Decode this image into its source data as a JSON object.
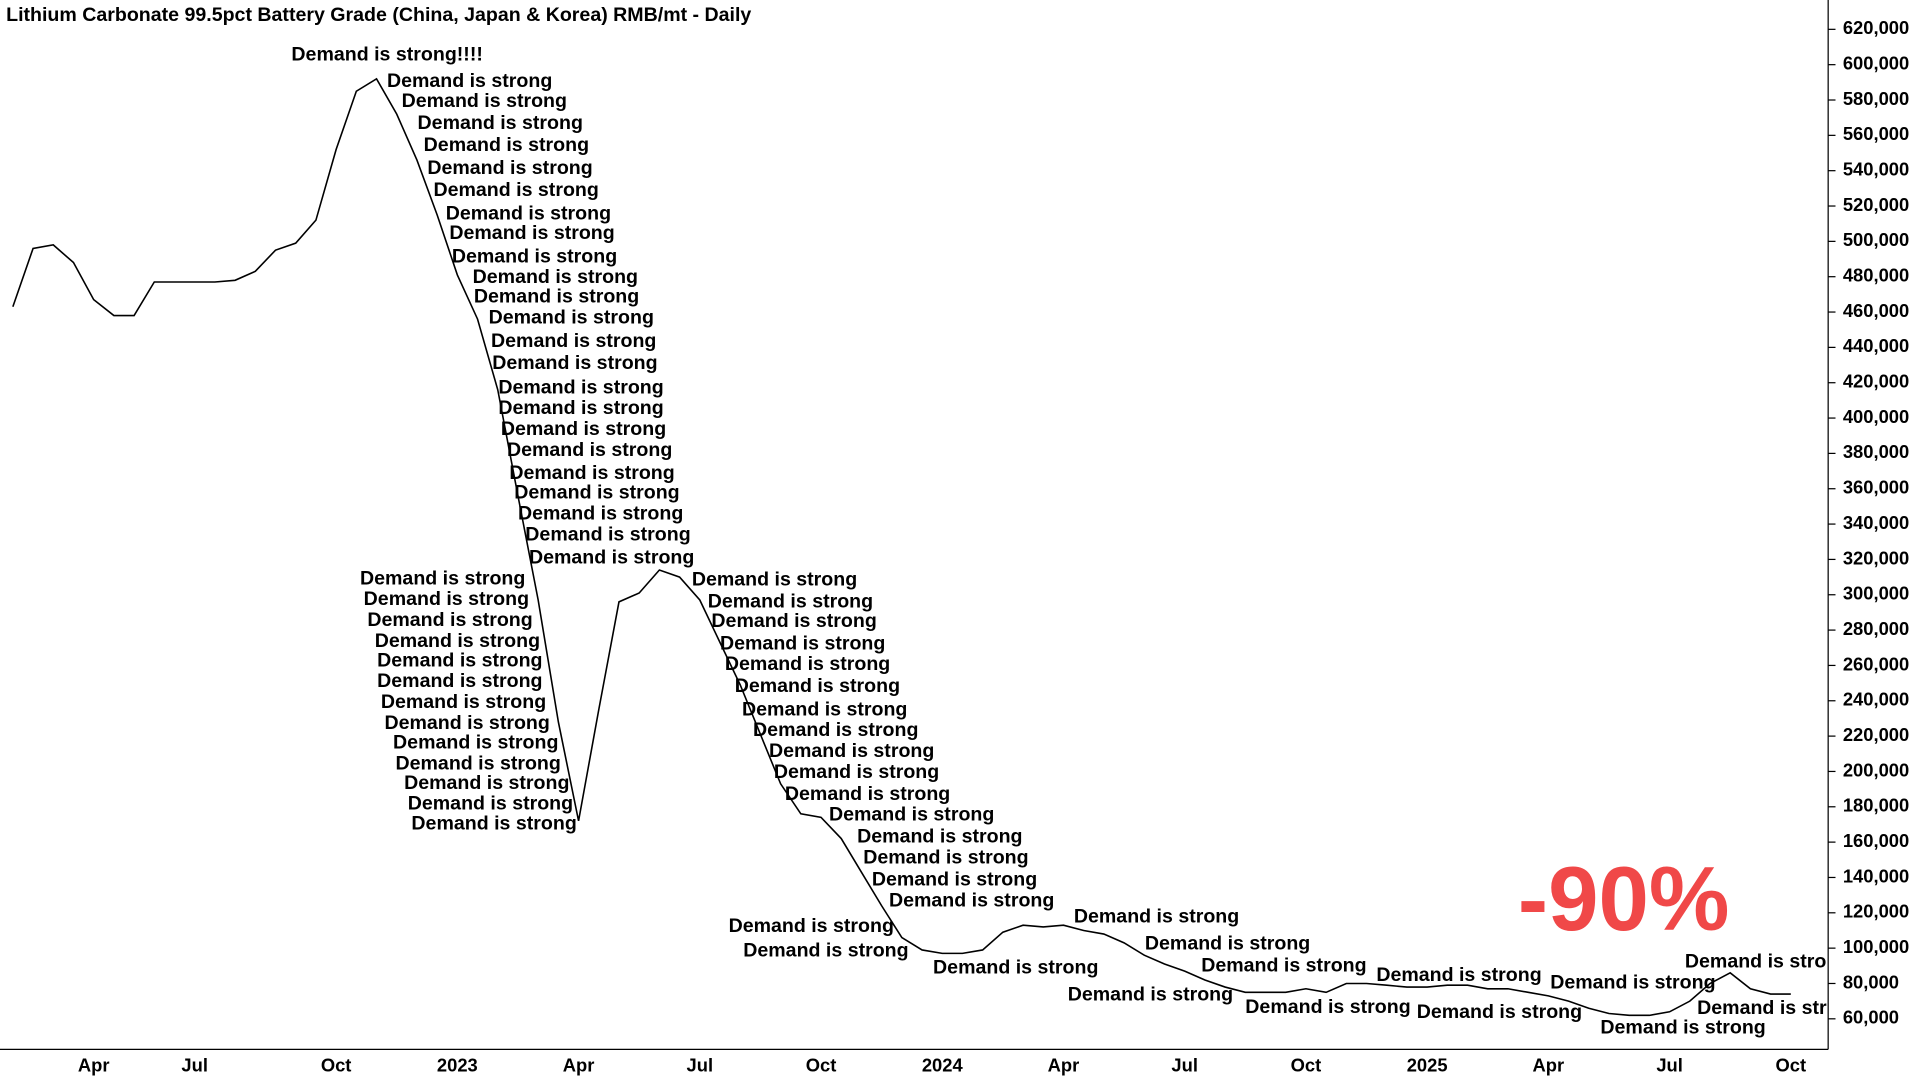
{
  "chart_data": {
    "type": "line",
    "title": "Lithium Carbonate 99.5pct Battery Grade (China, Japan & Korea) RMB/mt - Daily",
    "categories": [
      null,
      null,
      null,
      null,
      "Apr",
      null,
      null,
      null,
      null,
      "Jul",
      null,
      null,
      null,
      null,
      null,
      null,
      "Oct",
      null,
      null,
      null,
      null,
      null,
      "2023",
      null,
      null,
      null,
      null,
      null,
      "Apr",
      null,
      null,
      null,
      null,
      null,
      "Jul",
      null,
      null,
      null,
      null,
      null,
      "Oct",
      null,
      null,
      null,
      null,
      null,
      "2024",
      null,
      null,
      null,
      null,
      null,
      "Apr",
      null,
      null,
      null,
      null,
      null,
      "Jul",
      null,
      null,
      null,
      null,
      null,
      "Oct",
      null,
      null,
      null,
      null,
      null,
      "2025",
      null,
      null,
      null,
      null,
      null,
      "Apr",
      null,
      null,
      null,
      null,
      null,
      "Jul",
      null,
      null,
      null,
      null,
      null,
      "Oct"
    ],
    "values": [
      463000,
      496000,
      498000,
      488000,
      467000,
      458000,
      458000,
      477000,
      477000,
      477000,
      477000,
      478000,
      483000,
      495000,
      499000,
      512000,
      552000,
      585000,
      592000,
      572000,
      546000,
      515000,
      481000,
      456000,
      416000,
      356000,
      297000,
      228000,
      172000,
      235000,
      296000,
      301000,
      314000,
      310000,
      297000,
      273000,
      249000,
      221000,
      193000,
      176000,
      174000,
      162000,
      143000,
      124000,
      106000,
      99000,
      97000,
      97000,
      99000,
      109000,
      113000,
      112000,
      113000,
      110000,
      108000,
      103000,
      96000,
      91000,
      87000,
      82000,
      78000,
      75000,
      75000,
      75000,
      77000,
      75000,
      80000,
      80000,
      79000,
      78000,
      78000,
      79000,
      79000,
      77000,
      77000,
      75000,
      73000,
      70000,
      66000,
      63000,
      62000,
      62000,
      64000,
      70000,
      80000,
      86000,
      77000,
      74000,
      74000
    ],
    "color": "#000000",
    "ylim": [
      42700,
      636600
    ],
    "yticks": [
      {
        "value": 60000,
        "label": "60,000"
      },
      {
        "value": 80000,
        "label": "80,000"
      },
      {
        "value": 100000,
        "label": "100,000"
      },
      {
        "value": 120000,
        "label": "120,000"
      },
      {
        "value": 140000,
        "label": "140,000"
      },
      {
        "value": 160000,
        "label": "160,000"
      },
      {
        "value": 180000,
        "label": "180,000"
      },
      {
        "value": 200000,
        "label": "200,000"
      },
      {
        "value": 220000,
        "label": "220,000"
      },
      {
        "value": 240000,
        "label": "240,000"
      },
      {
        "value": 260000,
        "label": "260,000"
      },
      {
        "value": 280000,
        "label": "280,000"
      },
      {
        "value": 300000,
        "label": "300,000"
      },
      {
        "value": 320000,
        "label": "320,000"
      },
      {
        "value": 340000,
        "label": "340,000"
      },
      {
        "value": 360000,
        "label": "360,000"
      },
      {
        "value": 380000,
        "label": "380,000"
      },
      {
        "value": 400000,
        "label": "400,000"
      },
      {
        "value": 420000,
        "label": "420,000"
      },
      {
        "value": 440000,
        "label": "440,000"
      },
      {
        "value": 460000,
        "label": "460,000"
      },
      {
        "value": 480000,
        "label": "480,000"
      },
      {
        "value": 500000,
        "label": "500,000"
      },
      {
        "value": 520000,
        "label": "520,000"
      },
      {
        "value": 540000,
        "label": "540,000"
      },
      {
        "value": 560000,
        "label": "560,000"
      },
      {
        "value": 580000,
        "label": "580,000"
      },
      {
        "value": 600000,
        "label": "600,000"
      },
      {
        "value": 620000,
        "label": "620,000"
      }
    ],
    "grid": false,
    "highlight": "-90%",
    "highlight_color": "#f04848",
    "annotations": [
      "Demand is strong!!!!",
      "Demand is strong",
      "Demand is strong",
      "Demand is strong",
      "Demand is strong",
      "Demand is strong",
      "Demand is strong",
      "Demand is strong",
      "Demand is strong",
      "Demand is strong",
      "Demand is strong",
      "Demand is strong",
      "Demand is strong",
      "Demand is strong",
      "Demand is strong",
      "Demand is strong",
      "Demand is strong",
      "Demand is strong",
      "Demand is strong",
      "Demand is strong",
      "Demand is strong",
      "Demand is strong",
      "Demand is strong",
      "Demand is strong",
      "Demand is strong",
      "Demand is strong",
      "Demand is strong",
      "Demand is strong",
      "Demand is strong",
      "Demand is strong",
      "Demand is strong",
      "Demand is strong",
      "Demand is strong",
      "Demand is strong",
      "Demand is strong",
      "Demand is strong",
      "Demand is strong",
      "Demand is strong",
      "Demand is strong",
      "Demand is strong",
      "Demand is strong",
      "Demand is strong",
      "Demand is strong",
      "Demand is strong",
      "Demand is strong",
      "Demand is strong",
      "Demand is strong",
      "Demand is strong",
      "Demand is strong",
      "Demand is strong",
      "Demand is strong",
      "Demand is strong",
      "Demand is strong",
      "Demand is strong",
      "Demand is strong",
      "Demand is strong",
      "Demand is strong",
      "Demand is strong",
      "Demand is strong",
      "Demand is strong",
      "Demand is strong",
      "Demand is strong",
      "Demand is strong",
      "Demand is strong",
      "Demand is strong",
      "Demand is strong",
      "Demand is strong"
    ]
  }
}
